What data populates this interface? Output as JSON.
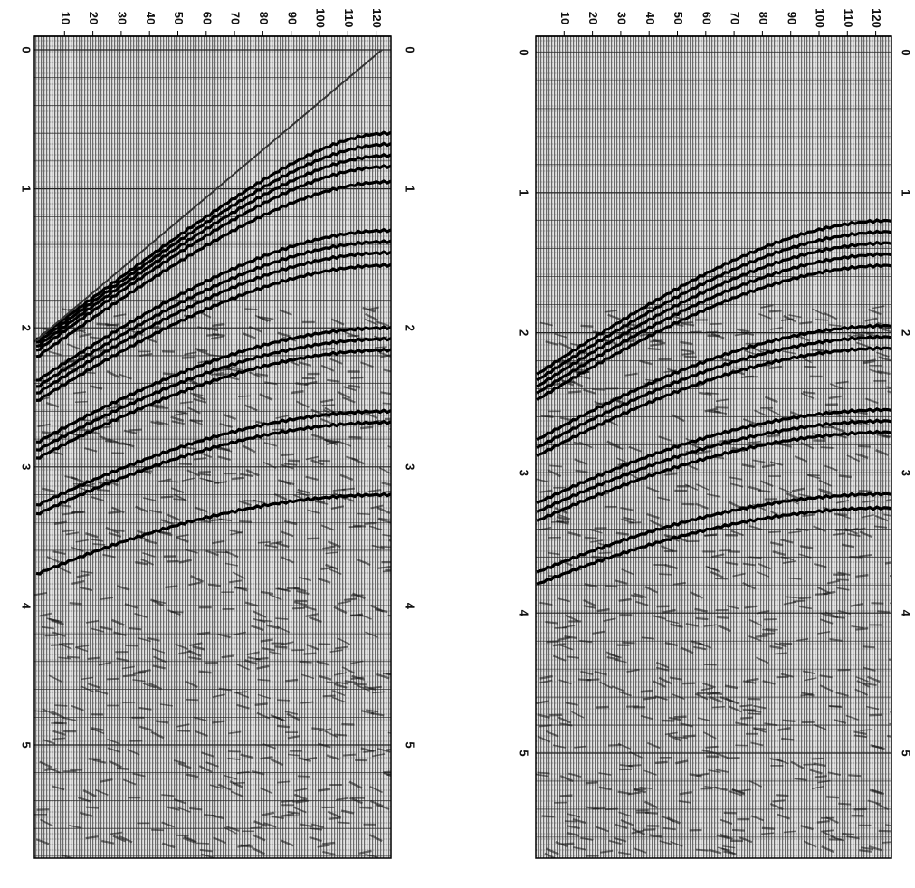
{
  "panels": [
    {
      "trace_labels": [
        10,
        20,
        30,
        40,
        50,
        60,
        70,
        80,
        90,
        100,
        110,
        120
      ],
      "time_labels": [
        0,
        1,
        2,
        3,
        4,
        5
      ]
    },
    {
      "trace_labels": [
        10,
        20,
        30,
        40,
        50,
        60,
        70,
        80,
        90,
        100,
        110,
        120
      ],
      "time_labels": [
        0,
        1,
        2,
        3,
        4,
        5
      ]
    }
  ]
}
